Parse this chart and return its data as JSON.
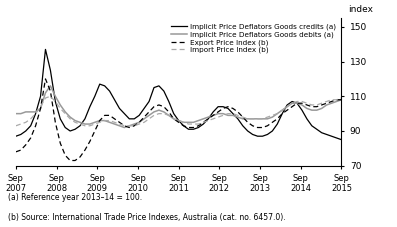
{
  "ylabel": "index",
  "ylim": [
    70,
    155
  ],
  "yticks": [
    70,
    90,
    110,
    130,
    150
  ],
  "footnote1": "(a) Reference year 2013–14 = 100.",
  "footnote2": "(b) Source: International Trade Price Indexes, Australia (cat. no. 6457.0).",
  "legend": [
    "Implicit Price Deflators Goods credits (a)",
    "Implicit Price Deflators Goods debits (a)",
    "Export Price Index (b)",
    "Import Price Index (b)"
  ],
  "x_tick_labels": [
    "Sep\n2007",
    "Sep\n2008",
    "Sep\n2009",
    "Sep\n2010",
    "Sep\n2011",
    "Sep\n2012",
    "Sep\n2013",
    "Sep\n2014",
    "Sep\n2015"
  ],
  "credits": [
    87,
    88,
    90,
    93,
    100,
    110,
    137,
    125,
    107,
    97,
    92,
    90,
    91,
    93,
    97,
    104,
    110,
    117,
    116,
    113,
    108,
    103,
    100,
    97,
    97,
    99,
    103,
    107,
    115,
    116,
    113,
    107,
    100,
    96,
    93,
    91,
    91,
    92,
    94,
    97,
    101,
    104,
    104,
    103,
    100,
    97,
    93,
    90,
    88,
    87,
    87,
    88,
    90,
    94,
    100,
    105,
    107,
    106,
    102,
    97,
    93,
    91,
    89,
    88,
    87,
    86,
    85
  ],
  "debits": [
    100,
    100,
    101,
    101,
    101,
    103,
    112,
    116,
    110,
    105,
    101,
    98,
    96,
    95,
    94,
    94,
    95,
    96,
    96,
    95,
    94,
    93,
    92,
    93,
    94,
    95,
    97,
    99,
    101,
    102,
    101,
    99,
    97,
    96,
    95,
    95,
    95,
    96,
    97,
    98,
    99,
    100,
    100,
    99,
    99,
    98,
    97,
    97,
    97,
    97,
    97,
    97,
    98,
    100,
    102,
    104,
    106,
    106,
    105,
    103,
    102,
    102,
    103,
    105,
    106,
    107,
    108
  ],
  "export": [
    78,
    79,
    82,
    86,
    93,
    103,
    120,
    113,
    95,
    83,
    76,
    73,
    73,
    75,
    79,
    84,
    90,
    96,
    99,
    99,
    97,
    95,
    93,
    92,
    93,
    95,
    98,
    101,
    104,
    105,
    104,
    101,
    97,
    95,
    93,
    92,
    92,
    93,
    95,
    97,
    99,
    101,
    103,
    104,
    103,
    101,
    98,
    95,
    93,
    92,
    92,
    93,
    95,
    97,
    100,
    102,
    104,
    106,
    106,
    105,
    104,
    104,
    105,
    106,
    107,
    108,
    108
  ],
  "import_idx": [
    93,
    94,
    95,
    97,
    100,
    104,
    109,
    110,
    107,
    103,
    100,
    97,
    95,
    94,
    93,
    93,
    94,
    95,
    96,
    96,
    95,
    94,
    93,
    93,
    93,
    94,
    95,
    97,
    99,
    100,
    100,
    99,
    97,
    96,
    95,
    94,
    94,
    94,
    95,
    96,
    97,
    98,
    99,
    100,
    100,
    99,
    98,
    97,
    97,
    97,
    97,
    98,
    99,
    100,
    102,
    104,
    106,
    107,
    107,
    106,
    105,
    105,
    106,
    107,
    108,
    108,
    109
  ]
}
